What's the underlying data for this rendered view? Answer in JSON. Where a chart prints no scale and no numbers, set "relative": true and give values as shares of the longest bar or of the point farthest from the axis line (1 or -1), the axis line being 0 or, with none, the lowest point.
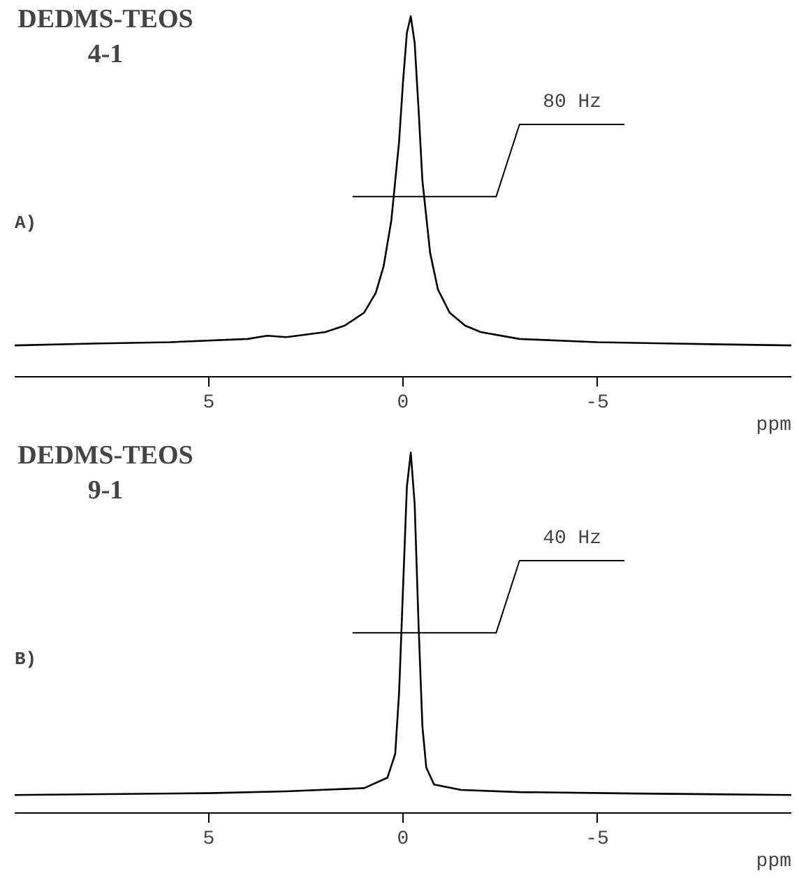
{
  "chart_data": [
    {
      "type": "line",
      "title": "DEDMS-TEOS\n4-1",
      "xlabel": "ppm",
      "relative": true,
      "color": "#000000",
      "x": [
        10,
        8,
        6,
        4,
        3.5,
        3,
        2,
        1.5,
        1.0,
        0.7,
        0.5,
        0.3,
        0.1,
        0,
        -0.1,
        -0.2,
        -0.3,
        -0.4,
        -0.5,
        -0.7,
        -0.9,
        -1.2,
        -1.6,
        -2,
        -3,
        -5,
        -7,
        -10
      ],
      "values": [
        0.087,
        0.092,
        0.096,
        0.105,
        0.114,
        0.11,
        0.124,
        0.142,
        0.178,
        0.233,
        0.306,
        0.434,
        0.653,
        0.817,
        0.954,
        1.0,
        0.927,
        0.744,
        0.544,
        0.343,
        0.242,
        0.178,
        0.142,
        0.124,
        0.105,
        0.096,
        0.092,
        0.087
      ],
      "annotations": [
        "A)",
        "80 Hz"
      ],
      "xlim": [
        10,
        -10
      ],
      "xticks": [
        5,
        0,
        -5
      ]
    },
    {
      "type": "line",
      "title": "DEDMS-TEOS\n9-1",
      "xlabel": "ppm",
      "relative": true,
      "color": "#000000",
      "x": [
        10,
        5,
        3,
        1,
        0.4,
        0.2,
        0.1,
        0,
        -0.1,
        -0.2,
        -0.3,
        -0.4,
        -0.5,
        -0.6,
        -0.8,
        -1.5,
        -3,
        -6,
        -10
      ],
      "values": [
        0.05,
        0.055,
        0.06,
        0.069,
        0.098,
        0.164,
        0.335,
        0.62,
        0.905,
        1.0,
        0.858,
        0.525,
        0.24,
        0.126,
        0.079,
        0.064,
        0.058,
        0.054,
        0.05
      ],
      "annotations": [
        "B)",
        "40 Hz"
      ],
      "xlim": [
        10,
        -10
      ],
      "xticks": [
        5,
        0,
        -5
      ]
    }
  ]
}
